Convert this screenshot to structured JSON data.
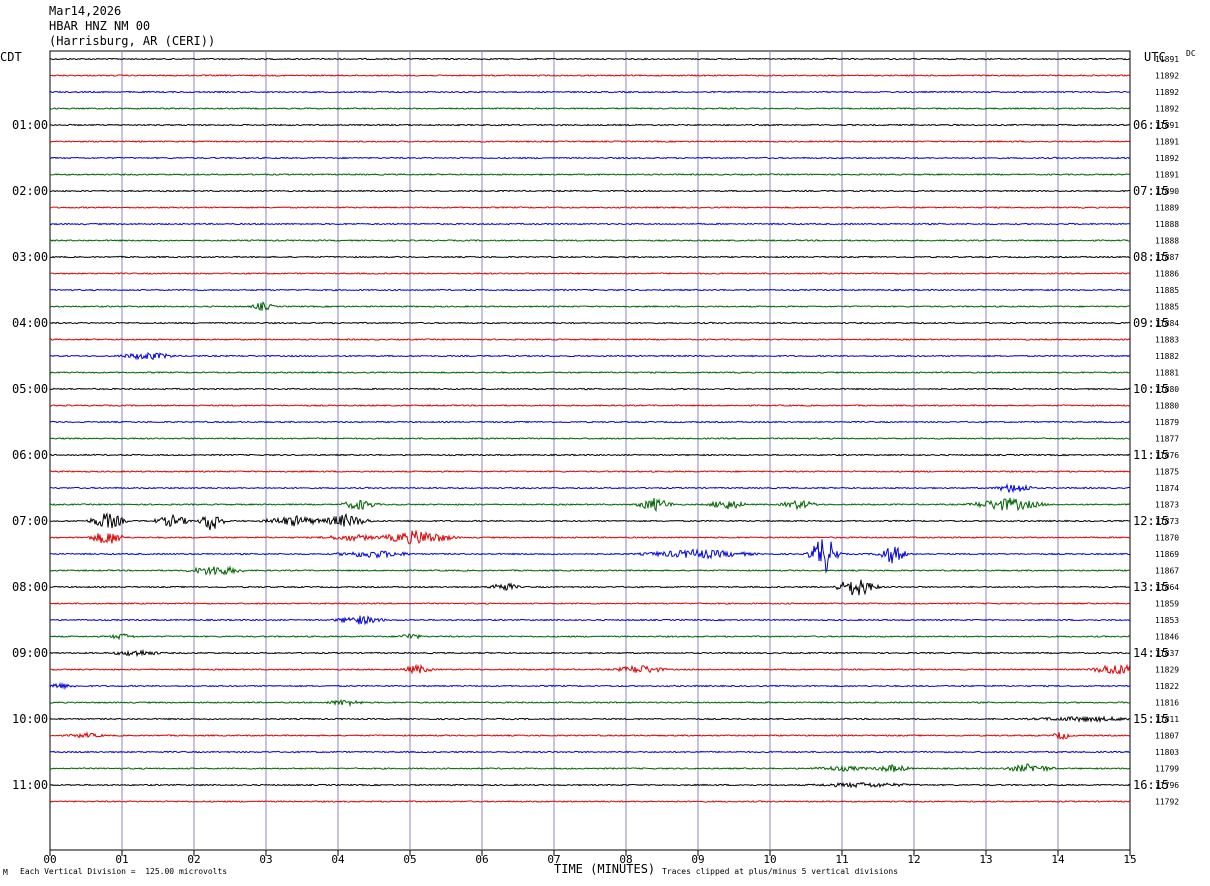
{
  "header": {
    "date": "Mar14,2026",
    "station": "HBAR HNZ NM 00",
    "location": "(Harrisburg, AR (CERI))"
  },
  "left_timezone": "CDT",
  "right_timezone": "UTC",
  "dc_label": "DC",
  "footer": {
    "scale_note": "Each Vertical Division =  125.00 microvolts",
    "clip_note": "Traces clipped at plus/minus 5 vertical divisions",
    "mark": "M"
  },
  "colors": {
    "trace_cycle": [
      "#000000",
      "#e00000",
      "#0000e0",
      "#006400"
    ],
    "grid": "#8888bb"
  },
  "chart_data": {
    "type": "line",
    "title": "",
    "xlabel": "TIME (MINUTES)",
    "x_ticks": [
      "00",
      "01",
      "02",
      "03",
      "04",
      "05",
      "06",
      "07",
      "08",
      "09",
      "10",
      "11",
      "12",
      "13",
      "14",
      "15"
    ],
    "xlim": [
      0,
      15
    ],
    "left_hour_labels": [
      "01:00",
      "02:00",
      "03:00",
      "04:00",
      "05:00",
      "06:00",
      "07:00",
      "08:00",
      "09:00",
      "10:00",
      "11:00"
    ],
    "right_hour_labels": [
      "06:15",
      "07:15",
      "08:15",
      "09:15",
      "10:15",
      "11:15",
      "12:15",
      "13:15",
      "14:15",
      "15:15",
      "16:15"
    ],
    "dc_offsets": [
      "11891",
      "11892",
      "11892",
      "11892",
      "11891",
      "11891",
      "11892",
      "11891",
      "11890",
      "11889",
      "11888",
      "11888",
      "11887",
      "11886",
      "11885",
      "11885",
      "11884",
      "11883",
      "11882",
      "11881",
      "11880",
      "11880",
      "11879",
      "11877",
      "11876",
      "11875",
      "11874",
      "11873",
      "11873",
      "11870",
      "11869",
      "11867",
      "11864",
      "11859",
      "11853",
      "11846",
      "11837",
      "11829",
      "11822",
      "11816",
      "11811",
      "11807",
      "11803",
      "11799",
      "11796",
      "11792"
    ],
    "events": [
      {
        "row": 15,
        "minute": 2.95,
        "amp": 6,
        "width": 0.18
      },
      {
        "row": 18,
        "minute": 1.35,
        "amp": 5,
        "width": 0.45
      },
      {
        "row": 26,
        "minute": 13.4,
        "amp": 7,
        "width": 0.3
      },
      {
        "row": 27,
        "minute": 4.3,
        "amp": 7,
        "width": 0.3
      },
      {
        "row": 27,
        "minute": 8.4,
        "amp": 9,
        "width": 0.3
      },
      {
        "row": 27,
        "minute": 9.4,
        "amp": 7,
        "width": 0.3
      },
      {
        "row": 27,
        "minute": 10.4,
        "amp": 6,
        "width": 0.3
      },
      {
        "row": 27,
        "minute": 13.3,
        "amp": 9,
        "width": 0.6
      },
      {
        "row": 28,
        "minute": 0.8,
        "amp": 12,
        "width": 0.3
      },
      {
        "row": 28,
        "minute": 1.7,
        "amp": 8,
        "width": 0.3
      },
      {
        "row": 28,
        "minute": 2.25,
        "amp": 16,
        "width": 0.2
      },
      {
        "row": 28,
        "minute": 3.4,
        "amp": 7,
        "width": 0.5
      },
      {
        "row": 28,
        "minute": 4.1,
        "amp": 9,
        "width": 0.4
      },
      {
        "row": 29,
        "minute": 0.8,
        "amp": 10,
        "width": 0.3
      },
      {
        "row": 29,
        "minute": 4.2,
        "amp": 4,
        "width": 0.5
      },
      {
        "row": 29,
        "minute": 5.1,
        "amp": 10,
        "width": 0.6
      },
      {
        "row": 30,
        "minute": 4.5,
        "amp": 5,
        "width": 0.6
      },
      {
        "row": 30,
        "minute": 9.0,
        "amp": 6,
        "width": 0.9
      },
      {
        "row": 30,
        "minute": 10.75,
        "amp": 28,
        "width": 0.25
      },
      {
        "row": 30,
        "minute": 11.7,
        "amp": 13,
        "width": 0.25
      },
      {
        "row": 31,
        "minute": 2.3,
        "amp": 7,
        "width": 0.45
      },
      {
        "row": 32,
        "minute": 6.3,
        "amp": 6,
        "width": 0.25
      },
      {
        "row": 32,
        "minute": 11.2,
        "amp": 14,
        "width": 0.35
      },
      {
        "row": 34,
        "minute": 4.3,
        "amp": 6,
        "width": 0.4
      },
      {
        "row": 35,
        "minute": 1.0,
        "amp": 4,
        "width": 0.2
      },
      {
        "row": 35,
        "minute": 5.0,
        "amp": 4,
        "width": 0.2
      },
      {
        "row": 36,
        "minute": 1.2,
        "amp": 4,
        "width": 0.4
      },
      {
        "row": 37,
        "minute": 5.1,
        "amp": 6,
        "width": 0.25
      },
      {
        "row": 37,
        "minute": 8.2,
        "amp": 6,
        "width": 0.4
      },
      {
        "row": 37,
        "minute": 14.8,
        "amp": 8,
        "width": 0.4
      },
      {
        "row": 38,
        "minute": 0.1,
        "amp": 4,
        "width": 0.3
      },
      {
        "row": 39,
        "minute": 4.1,
        "amp": 4,
        "width": 0.3
      },
      {
        "row": 40,
        "minute": 14.4,
        "amp": 3,
        "width": 0.9
      },
      {
        "row": 41,
        "minute": 0.5,
        "amp": 3,
        "width": 0.3
      },
      {
        "row": 41,
        "minute": 14.05,
        "amp": 6,
        "width": 0.15
      },
      {
        "row": 43,
        "minute": 11.0,
        "amp": 3,
        "width": 0.5
      },
      {
        "row": 43,
        "minute": 11.7,
        "amp": 5,
        "width": 0.3
      },
      {
        "row": 43,
        "minute": 13.6,
        "amp": 6,
        "width": 0.4
      },
      {
        "row": 44,
        "minute": 11.3,
        "amp": 3,
        "width": 0.8
      }
    ]
  }
}
